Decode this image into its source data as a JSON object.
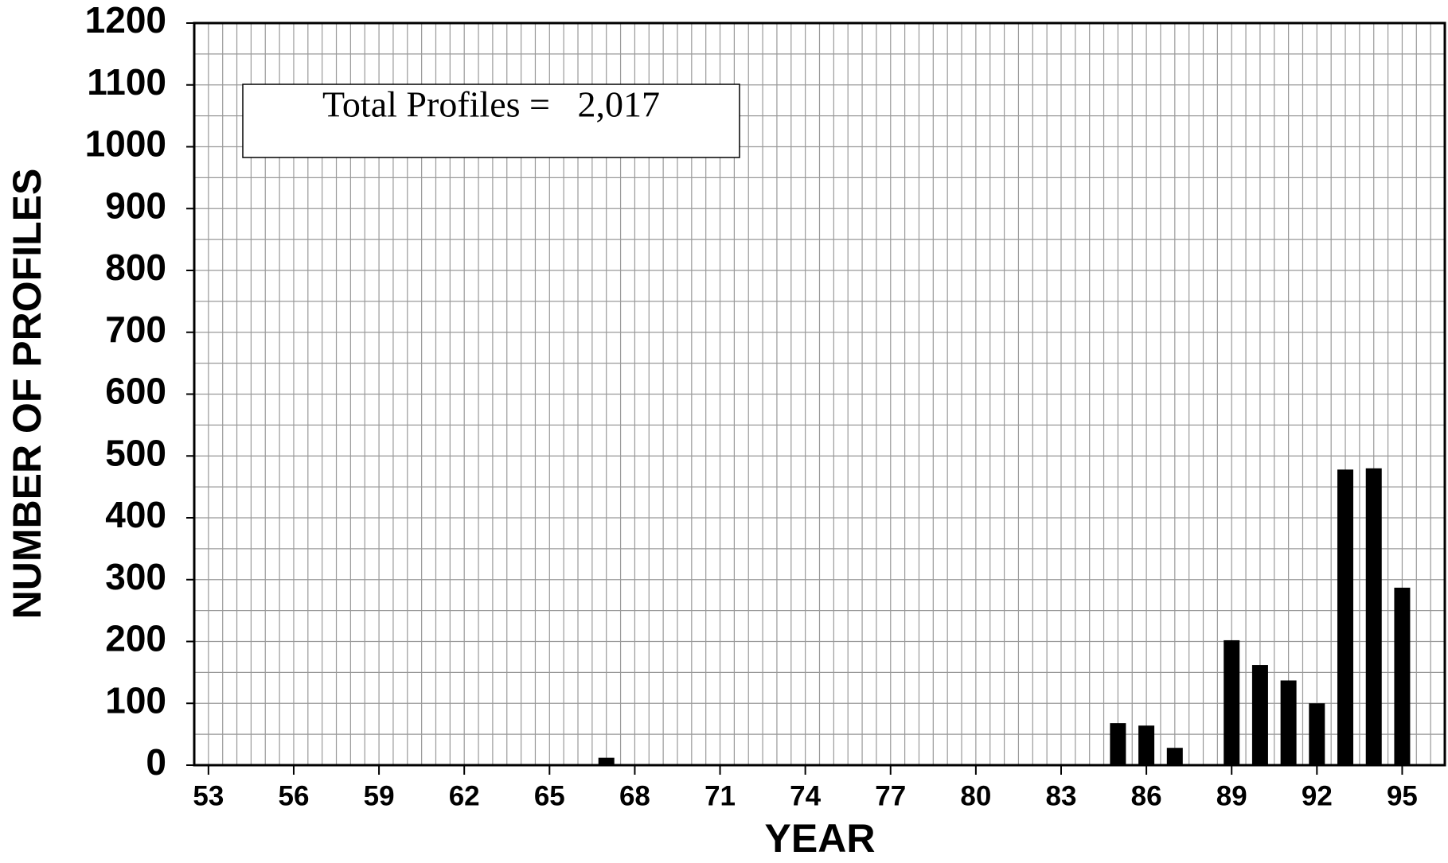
{
  "chart_data": {
    "type": "bar",
    "annotation": "Total Profiles =   2,017",
    "x_label": "YEAR",
    "y_label": "NUMBER OF PROFILES",
    "categories": [
      "53",
      null,
      null,
      "56",
      null,
      null,
      "59",
      null,
      null,
      "62",
      null,
      null,
      "65",
      null,
      null,
      "68",
      null,
      null,
      "71",
      null,
      null,
      "74",
      null,
      null,
      "77",
      null,
      null,
      "80",
      null,
      null,
      "83",
      null,
      null,
      "86",
      null,
      null,
      "89",
      null,
      null,
      "92",
      null,
      null,
      "95",
      null
    ],
    "values": [
      0,
      0,
      0,
      0,
      0,
      0,
      0,
      0,
      0,
      0,
      0,
      0,
      0,
      0,
      12,
      0,
      0,
      0,
      0,
      0,
      0,
      0,
      0,
      0,
      0,
      0,
      0,
      0,
      0,
      0,
      0,
      0,
      68,
      64,
      28,
      0,
      202,
      162,
      137,
      100,
      478,
      480,
      287,
      null
    ],
    "color": "#000000",
    "ylim": [
      0,
      1200
    ],
    "yticks": [
      0,
      100,
      200,
      300,
      400,
      500,
      600,
      700,
      800,
      900,
      1000,
      1100,
      1200
    ],
    "grid": true
  }
}
